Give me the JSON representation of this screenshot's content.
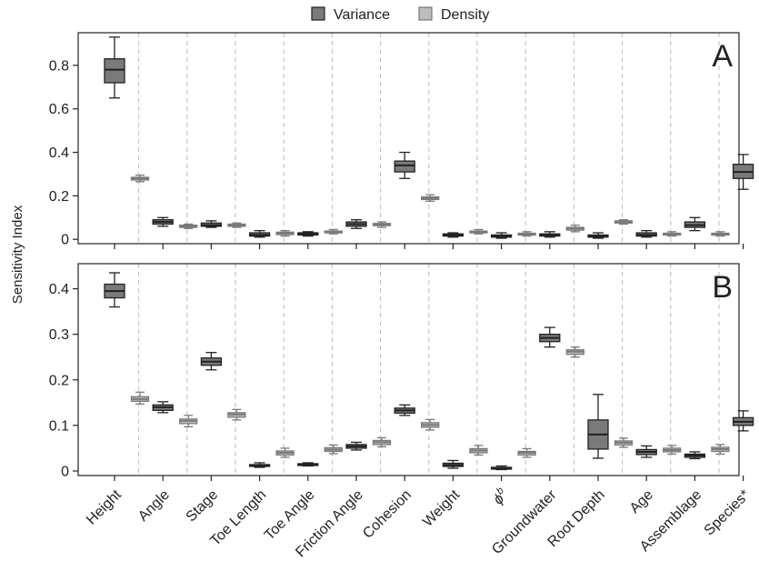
{
  "chart_data": {
    "type": "box",
    "ylabel": "Sensitivity Index",
    "legend": {
      "placement": "top-center",
      "entries": [
        "Variance",
        "Density"
      ]
    },
    "categories": [
      "Height",
      "Angle",
      "Stage",
      "Toe Length",
      "Toe Angle",
      "Friction Angle",
      "Cohesion",
      "Weight",
      "ϕ",
      "Groundwater",
      "Root Depth",
      "Age",
      "Assemblage",
      "Species*"
    ],
    "category_superscript": {
      "index": 8,
      "text": "b"
    },
    "colors": {
      "Variance": "#7a7a7a",
      "Density": "#bdbdbd",
      "Variance_stroke": "#222222",
      "Density_stroke": "#7a7a7a",
      "grid": "#bbbbbb"
    },
    "panels": [
      {
        "label": "A",
        "ylim": [
          -0.02,
          0.95
        ],
        "yticks": [
          0,
          0.2,
          0.4,
          0.6,
          0.8
        ],
        "ytick_labels": [
          "0",
          "0.2",
          "0.4",
          "0.6",
          "0.8"
        ],
        "series": [
          {
            "name": "Variance",
            "boxes": [
              [
                0.65,
                0.72,
                0.78,
                0.83,
                0.93
              ],
              [
                0.06,
                0.07,
                0.08,
                0.09,
                0.1
              ],
              [
                0.055,
                0.06,
                0.065,
                0.075,
                0.085
              ],
              [
                0.01,
                0.015,
                0.02,
                0.03,
                0.04
              ],
              [
                0.015,
                0.02,
                0.025,
                0.03,
                0.035
              ],
              [
                0.05,
                0.06,
                0.07,
                0.08,
                0.09
              ],
              [
                0.28,
                0.31,
                0.34,
                0.36,
                0.4
              ],
              [
                0.01,
                0.015,
                0.02,
                0.025,
                0.03
              ],
              [
                0.005,
                0.01,
                0.015,
                0.02,
                0.03
              ],
              [
                0.01,
                0.015,
                0.02,
                0.025,
                0.035
              ],
              [
                0.005,
                0.01,
                0.015,
                0.02,
                0.03
              ],
              [
                0.01,
                0.015,
                0.02,
                0.03,
                0.04
              ],
              [
                0.04,
                0.055,
                0.065,
                0.08,
                0.1
              ],
              [
                0.23,
                0.28,
                0.31,
                0.345,
                0.39
              ]
            ]
          },
          {
            "name": "Density",
            "boxes": [
              [
                0.265,
                0.273,
                0.28,
                0.285,
                0.295
              ],
              [
                0.05,
                0.055,
                0.06,
                0.065,
                0.07
              ],
              [
                0.055,
                0.06,
                0.065,
                0.07,
                0.075
              ],
              [
                0.015,
                0.022,
                0.028,
                0.033,
                0.04
              ],
              [
                0.025,
                0.03,
                0.035,
                0.038,
                0.045
              ],
              [
                0.055,
                0.063,
                0.068,
                0.073,
                0.08
              ],
              [
                0.175,
                0.183,
                0.19,
                0.195,
                0.205
              ],
              [
                0.025,
                0.03,
                0.035,
                0.038,
                0.045
              ],
              [
                0.015,
                0.02,
                0.025,
                0.028,
                0.035
              ],
              [
                0.035,
                0.042,
                0.05,
                0.055,
                0.065
              ],
              [
                0.07,
                0.075,
                0.08,
                0.085,
                0.09
              ],
              [
                0.015,
                0.02,
                0.025,
                0.028,
                0.035
              ],
              [
                0.015,
                0.02,
                0.025,
                0.028,
                0.035
              ]
            ]
          }
        ]
      },
      {
        "label": "B",
        "ylim": [
          -0.01,
          0.455
        ],
        "yticks": [
          0,
          0.1,
          0.2,
          0.3,
          0.4
        ],
        "ytick_labels": [
          "0",
          "0.1",
          "0.2",
          "0.3",
          "0.4"
        ],
        "series": [
          {
            "name": "Variance",
            "boxes": [
              [
                0.36,
                0.38,
                0.395,
                0.41,
                0.435
              ],
              [
                0.128,
                0.133,
                0.14,
                0.145,
                0.152
              ],
              [
                0.222,
                0.232,
                0.24,
                0.248,
                0.26
              ],
              [
                0.008,
                0.01,
                0.012,
                0.014,
                0.018
              ],
              [
                0.011,
                0.013,
                0.015,
                0.016,
                0.018
              ],
              [
                0.046,
                0.05,
                0.054,
                0.058,
                0.063
              ],
              [
                0.122,
                0.127,
                0.133,
                0.138,
                0.145
              ],
              [
                0.006,
                0.01,
                0.013,
                0.017,
                0.023
              ],
              [
                0.003,
                0.005,
                0.007,
                0.008,
                0.011
              ],
              [
                0.272,
                0.284,
                0.292,
                0.3,
                0.315
              ],
              [
                0.028,
                0.048,
                0.08,
                0.112,
                0.168
              ],
              [
                0.03,
                0.036,
                0.042,
                0.047,
                0.055
              ],
              [
                0.027,
                0.03,
                0.034,
                0.037,
                0.042
              ],
              [
                0.088,
                0.1,
                0.108,
                0.117,
                0.132
              ]
            ]
          },
          {
            "name": "Density",
            "boxes": [
              [
                0.147,
                0.153,
                0.158,
                0.163,
                0.173
              ],
              [
                0.097,
                0.104,
                0.11,
                0.114,
                0.122
              ],
              [
                0.112,
                0.118,
                0.124,
                0.128,
                0.135
              ],
              [
                0.03,
                0.035,
                0.04,
                0.044,
                0.05
              ],
              [
                0.038,
                0.043,
                0.047,
                0.051,
                0.057
              ],
              [
                0.053,
                0.058,
                0.063,
                0.067,
                0.073
              ],
              [
                0.09,
                0.096,
                0.101,
                0.106,
                0.113
              ],
              [
                0.035,
                0.04,
                0.045,
                0.049,
                0.056
              ],
              [
                0.03,
                0.035,
                0.04,
                0.043,
                0.049
              ],
              [
                0.25,
                0.256,
                0.262,
                0.266,
                0.272
              ],
              [
                0.052,
                0.057,
                0.062,
                0.066,
                0.072
              ],
              [
                0.037,
                0.042,
                0.046,
                0.05,
                0.056
              ],
              [
                0.037,
                0.043,
                0.048,
                0.052,
                0.058
              ]
            ]
          }
        ]
      }
    ]
  }
}
